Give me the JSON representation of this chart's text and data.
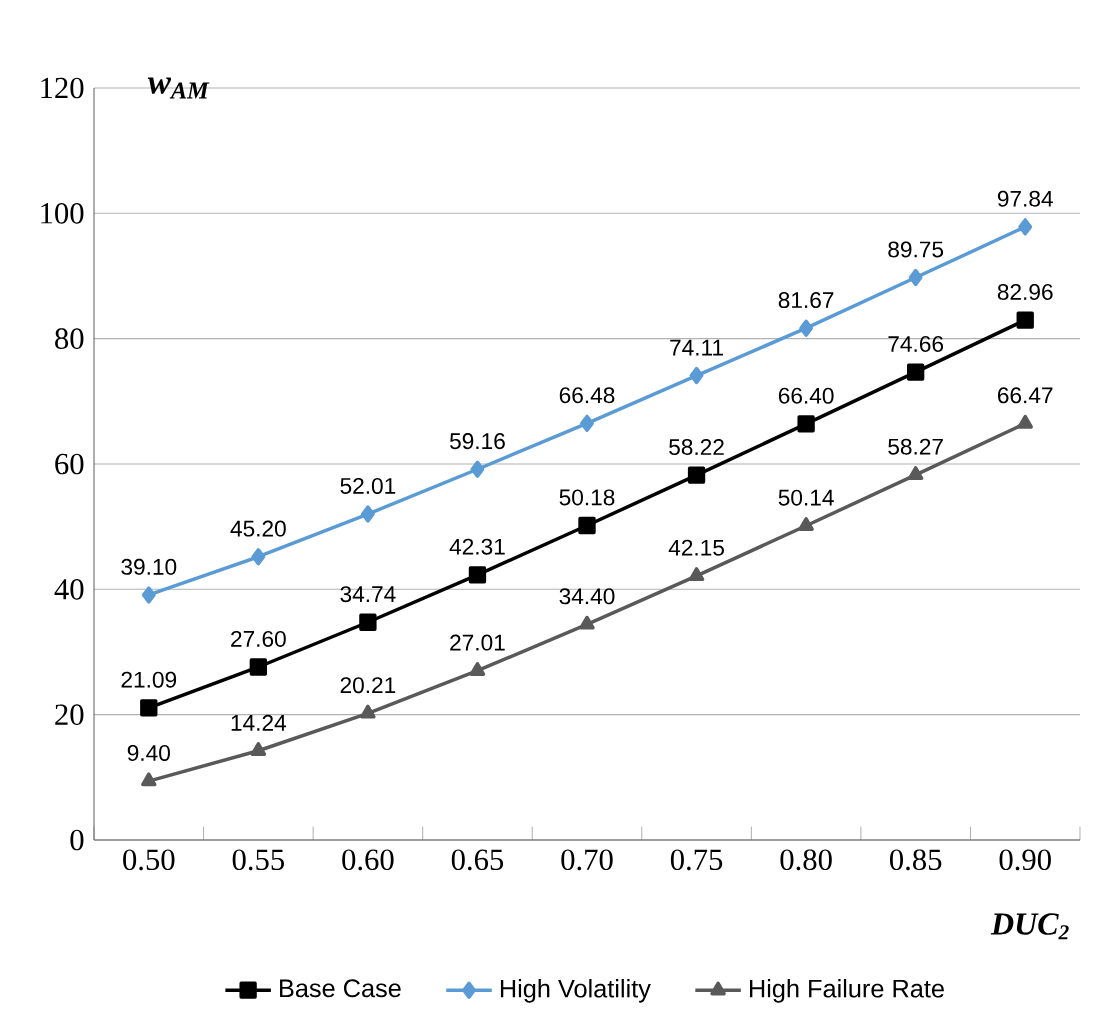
{
  "chart_data": {
    "type": "line",
    "xlabel": "DUC$_{2}$",
    "ylabel": "w$_{AM}$",
    "categories": [
      "0.50",
      "0.55",
      "0.60",
      "0.65",
      "0.70",
      "0.75",
      "0.80",
      "0.85",
      "0.90"
    ],
    "series": [
      {
        "name": "Base Case",
        "color": "#000000",
        "marker": "square",
        "values": [
          21.09,
          27.6,
          34.74,
          42.31,
          50.18,
          58.22,
          66.4,
          74.66,
          82.96
        ],
        "value_labels": [
          "21.09",
          "27.60",
          "34.74",
          "42.31",
          "50.18",
          "58.22",
          "66.40",
          "74.66",
          "82.96"
        ]
      },
      {
        "name": "High Volatility",
        "color": "#5b9bd5",
        "marker": "diamond",
        "values": [
          39.1,
          45.2,
          52.01,
          59.16,
          66.48,
          74.11,
          81.67,
          89.75,
          97.84
        ],
        "value_labels": [
          "39.10",
          "45.20",
          "52.01",
          "59.16",
          "66.48",
          "74.11",
          "81.67",
          "89.75",
          "97.84"
        ]
      },
      {
        "name": "High Failure Rate",
        "color": "#595959",
        "marker": "triangle",
        "values": [
          9.4,
          14.24,
          20.21,
          27.01,
          34.4,
          42.15,
          50.14,
          58.27,
          66.47
        ],
        "value_labels": [
          "9.40",
          "14.24",
          "20.21",
          "27.01",
          "34.40",
          "42.15",
          "50.14",
          "58.27",
          "66.47"
        ]
      }
    ],
    "ylim": [
      0,
      120
    ],
    "yticks": [
      0,
      20,
      40,
      60,
      80,
      100,
      120
    ],
    "grid": "y",
    "legend": "bottom",
    "line_style": "solid"
  }
}
